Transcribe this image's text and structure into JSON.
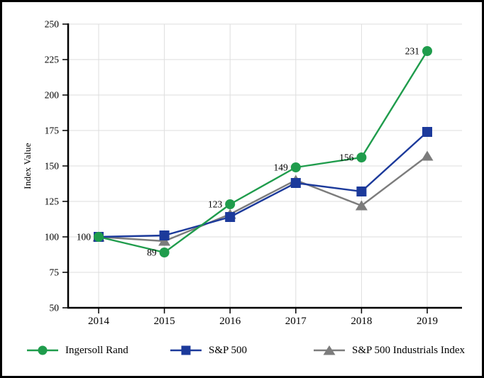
{
  "figure": {
    "background_color": "#ffffff",
    "border_color": "#000000",
    "grid_color": "#dedede",
    "axis_color": "#000000",
    "label_color": "#000000"
  },
  "chart_data": {
    "type": "line",
    "title": "",
    "xlabel": "",
    "ylabel": "Index Value",
    "categories": [
      "2014",
      "2015",
      "2016",
      "2017",
      "2018",
      "2019"
    ],
    "ylim": [
      50,
      250
    ],
    "ytick_interval": 25,
    "grid": true,
    "legend_position": "bottom",
    "series": [
      {
        "name": "Ingersoll Rand",
        "marker": "circle",
        "color": "#1f9c4c",
        "values": [
          100,
          89,
          123,
          149,
          156,
          231
        ],
        "point_labels": [
          "100",
          "89",
          "123",
          "149",
          "156",
          "231"
        ]
      },
      {
        "name": "S&P 500",
        "marker": "square",
        "color": "#1c3a9b",
        "values": [
          100,
          101,
          114,
          138,
          132,
          174
        ],
        "point_labels": []
      },
      {
        "name": "S&P 500 Industrials Index",
        "marker": "triangle",
        "color": "#7c7c7c",
        "values": [
          100,
          97,
          116,
          140,
          122,
          157
        ],
        "point_labels": []
      }
    ]
  }
}
